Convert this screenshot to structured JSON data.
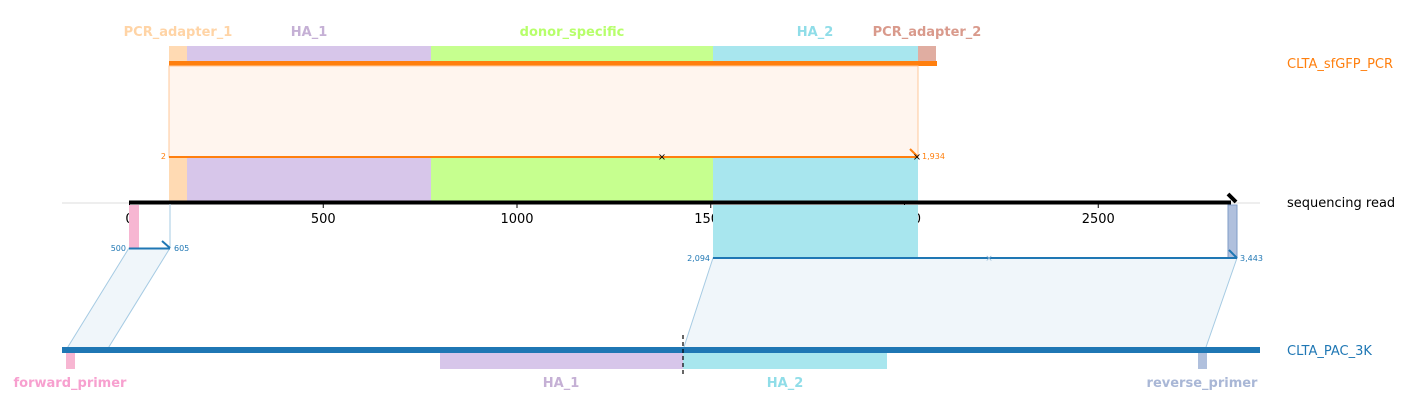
{
  "colors": {
    "pcr_track": "#ff7f0e",
    "target_track": "#1f77b4",
    "read_axis": "#000000",
    "pcr_adapter_1": "#ffdab3",
    "ha_1": "#d7c6ea",
    "donor_specific": "#c6ff8f",
    "ha_2": "#a8e6ee",
    "pcr_adapter_2": "#e0ada1",
    "forward_primer": "#f7b6d2",
    "reverse_primer": "#b0c0dd",
    "pcr_label_1": "#ffd4a6",
    "ha_label": "#c5b0d5",
    "donor_label": "#b7ff6b",
    "ha2_label": "#8fdde8",
    "pcr_label_2": "#d99a8c",
    "fwd_label": "#f7a0cf",
    "rev_label": "#a9b7d6"
  },
  "reference_tracks": {
    "top": {
      "name": "CLTA_sfGFP_PCR",
      "features": [
        {
          "label": "PCR_adapter_1",
          "color_key": "pcr_adapter_1"
        },
        {
          "label": "HA_1",
          "color_key": "ha_1"
        },
        {
          "label": "donor_specific",
          "color_key": "donor_specific"
        },
        {
          "label": "HA_2",
          "color_key": "ha_2"
        },
        {
          "label": "PCR_adapter_2",
          "color_key": "pcr_adapter_2"
        }
      ],
      "alignment": {
        "ref_start": "2",
        "ref_end": "1,934",
        "read_start": 100,
        "read_end": 2040
      }
    },
    "bottom": {
      "name": "CLTA_PAC_3K",
      "features": [
        {
          "label": "forward_primer",
          "color_key": "forward_primer"
        },
        {
          "label": "HA_1",
          "color_key": "ha_1"
        },
        {
          "label": "HA_2",
          "color_key": "ha_2"
        },
        {
          "label": "reverse_primer",
          "color_key": "reverse_primer"
        }
      ],
      "alignments": [
        {
          "ref_start": "500",
          "ref_end": "605",
          "read_start": 0,
          "read_end": 105
        },
        {
          "ref_start": "2,094",
          "ref_end": "3,443",
          "read_start": 1500,
          "read_end": 2850
        }
      ]
    }
  },
  "read": {
    "name": "sequencing read",
    "ticks": [
      "0",
      "500",
      "1000",
      "1500",
      "2000",
      "2500"
    ],
    "tick_values": [
      0,
      500,
      1000,
      1500,
      2000,
      2500
    ],
    "length": 2850
  }
}
